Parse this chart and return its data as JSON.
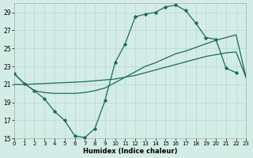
{
  "xlabel": "Humidex (Indice chaleur)",
  "background_color": "#d4ece6",
  "grid_color": "#b8d8d0",
  "line_color": "#1a6b5a",
  "xlim": [
    0,
    23
  ],
  "ylim": [
    15,
    30
  ],
  "xticks": [
    0,
    1,
    2,
    3,
    4,
    5,
    6,
    7,
    8,
    9,
    10,
    11,
    12,
    13,
    14,
    15,
    16,
    17,
    18,
    19,
    20,
    21,
    22,
    23
  ],
  "yticks": [
    15,
    17,
    19,
    21,
    23,
    25,
    27,
    29
  ],
  "line1_x": [
    0,
    1,
    2,
    3,
    4,
    5,
    6,
    7,
    8,
    9,
    10,
    11,
    12,
    13,
    14,
    15,
    16,
    17,
    18,
    19,
    20,
    21,
    22
  ],
  "line1_y": [
    22.2,
    21.1,
    20.3,
    19.4,
    18.0,
    17.0,
    15.3,
    15.1,
    16.1,
    19.2,
    23.4,
    25.5,
    28.5,
    28.8,
    29.0,
    29.6,
    29.8,
    29.2,
    27.8,
    26.2,
    26.0,
    22.8,
    22.3
  ],
  "line2_x": [
    0,
    1,
    2,
    3,
    4,
    5,
    6,
    7,
    8,
    9,
    10,
    11,
    12,
    13,
    14,
    15,
    16,
    17,
    18,
    19,
    20,
    21,
    22,
    23
  ],
  "line2_y": [
    21.0,
    21.0,
    21.05,
    21.1,
    21.15,
    21.2,
    21.25,
    21.3,
    21.4,
    21.5,
    21.6,
    21.8,
    22.0,
    22.3,
    22.6,
    22.9,
    23.2,
    23.5,
    23.8,
    24.1,
    24.3,
    24.5,
    24.6,
    21.7
  ],
  "line3_x": [
    0,
    1,
    2,
    3,
    4,
    5,
    6,
    7,
    8,
    9,
    10,
    11,
    12,
    13,
    14,
    15,
    16,
    17,
    18,
    19,
    20,
    21,
    22,
    23
  ],
  "line3_y": [
    22.2,
    21.1,
    20.3,
    20.1,
    20.0,
    20.0,
    20.0,
    20.1,
    20.3,
    20.6,
    21.2,
    21.8,
    22.4,
    23.0,
    23.4,
    23.9,
    24.4,
    24.7,
    25.1,
    25.5,
    25.9,
    26.2,
    26.5,
    21.7
  ]
}
